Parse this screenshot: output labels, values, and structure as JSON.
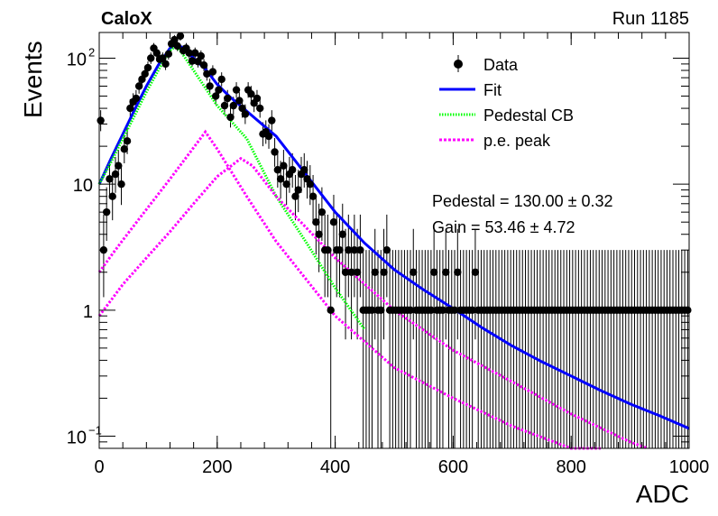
{
  "header": {
    "experiment": "CaloX",
    "run": "Run 1185"
  },
  "chart_data": {
    "type": "scatter",
    "xlabel": "ADC",
    "ylabel": "Events",
    "xlim": [
      0,
      1000
    ],
    "ylim": [
      0.08,
      160
    ],
    "yscale": "log",
    "x_ticks": [
      "0",
      "200",
      "400",
      "600",
      "800",
      "1000"
    ],
    "y_ticks": [
      {
        "value": 0.1,
        "base": "10",
        "exp": "−1"
      },
      {
        "value": 1,
        "base": "1",
        "exp": ""
      },
      {
        "value": 10,
        "base": "10",
        "exp": ""
      },
      {
        "value": 100,
        "base": "10",
        "exp": "2"
      }
    ],
    "legend": {
      "position": "top-right",
      "entries": [
        "Data",
        "Fit",
        "Pedestal CB",
        "p.e. peak"
      ]
    },
    "fit_results": {
      "pedestal": "Pedestal = 130.00 ± 0.32",
      "gain": "Gain = 53.46 ± 4.72"
    },
    "colors": {
      "data": "#000000",
      "fit": "#0000ff",
      "pedestal": "#00ff00",
      "pe": "#ff00ff"
    },
    "series": [
      {
        "name": "Data",
        "style": "points",
        "x": [
          0,
          5,
          10,
          15,
          20,
          25,
          30,
          35,
          40,
          45,
          50,
          55,
          60,
          65,
          70,
          75,
          80,
          85,
          90,
          95,
          100,
          105,
          110,
          115,
          120,
          125,
          130,
          135,
          140,
          145,
          150,
          155,
          160,
          165,
          170,
          175,
          180,
          185,
          190,
          195,
          200,
          205,
          210,
          215,
          220,
          225,
          230,
          235,
          240,
          245,
          250,
          255,
          260,
          265,
          270,
          275,
          280,
          285,
          290,
          295,
          300,
          305,
          310,
          315,
          320,
          325,
          330,
          335,
          340,
          345,
          350,
          355,
          360,
          365,
          370,
          375,
          380,
          385,
          390,
          395,
          400,
          405,
          410,
          415,
          420,
          425,
          430,
          435,
          440,
          445,
          450,
          455,
          460,
          465,
          470,
          475,
          480,
          485,
          490,
          495,
          500,
          505,
          510,
          515,
          520,
          525,
          530,
          535,
          540,
          545,
          550,
          555,
          560,
          565,
          570,
          575,
          580,
          585,
          590,
          595,
          600,
          605,
          610,
          615,
          620,
          625,
          630,
          635,
          640,
          645,
          650,
          655,
          660,
          665,
          670,
          675,
          680,
          685,
          690,
          695,
          700,
          705,
          710,
          715,
          720,
          725,
          730,
          735,
          740,
          745,
          750,
          755,
          760,
          765,
          770,
          775,
          780,
          785,
          790,
          795,
          800,
          805,
          810,
          815,
          820,
          825,
          830,
          835,
          840,
          845,
          850,
          855,
          860,
          865,
          870,
          875,
          880,
          885,
          890,
          895,
          900,
          905,
          910,
          915,
          920,
          925,
          930,
          935,
          940,
          945,
          950,
          955,
          960,
          965,
          970,
          975,
          980,
          985,
          990,
          995
        ],
        "y": [
          32,
          3,
          6,
          11,
          8,
          12,
          14,
          10,
          19,
          22,
          40,
          45,
          48,
          60,
          68,
          75,
          84,
          100,
          120,
          110,
          98,
          100,
          90,
          108,
          130,
          140,
          125,
          150,
          115,
          120,
          110,
          95,
          110,
          94,
          104,
          88,
          75,
          60,
          78,
          50,
          56,
          68,
          42,
          48,
          34,
          42,
          56,
          46,
          40,
          36,
          56,
          52,
          44,
          48,
          40,
          25,
          26,
          24,
          32,
          18,
          13,
          11,
          14,
          10,
          12,
          13,
          8,
          9,
          12,
          13,
          11,
          10,
          8,
          5,
          4,
          6,
          3,
          3,
          1,
          5,
          3,
          3,
          4,
          2,
          3,
          2,
          3,
          2,
          3,
          1,
          1,
          1,
          1,
          2,
          1,
          1,
          2,
          3,
          1,
          1,
          1,
          1,
          1,
          1,
          1,
          1,
          2,
          1,
          1,
          1,
          1,
          1,
          1,
          2,
          1,
          1,
          1,
          2,
          1,
          1,
          1,
          2,
          1,
          1,
          1,
          1,
          1,
          2,
          1,
          1,
          1,
          1,
          1,
          1,
          1,
          1,
          1,
          1,
          1,
          1,
          1,
          1,
          1,
          1,
          1,
          1,
          1,
          1,
          1,
          1,
          1,
          1,
          1,
          1,
          1,
          1,
          1,
          1,
          1,
          1,
          1,
          1,
          1,
          1,
          1,
          1,
          1,
          1,
          1,
          1,
          1,
          1,
          1,
          1,
          1,
          1,
          1,
          1,
          1,
          1,
          1,
          1,
          1,
          1,
          1,
          1,
          1,
          1,
          1,
          1,
          1,
          1,
          1,
          1,
          1,
          1,
          1,
          1,
          1,
          1
        ]
      },
      {
        "name": "Fit",
        "style": "line",
        "x": [
          0,
          20,
          40,
          60,
          80,
          100,
          120,
          130,
          140,
          160,
          180,
          200,
          220,
          250,
          300,
          350,
          400,
          450,
          500,
          550,
          600,
          650,
          700,
          750,
          800,
          850,
          900,
          950,
          1000
        ],
        "y": [
          10,
          16,
          25,
          39,
          60,
          88,
          120,
          130,
          122,
          100,
          82,
          62,
          50,
          38,
          24,
          12,
          6,
          3.4,
          2.1,
          1.45,
          1.03,
          0.72,
          0.52,
          0.39,
          0.3,
          0.23,
          0.18,
          0.145,
          0.115
        ]
      },
      {
        "name": "Pedestal CB",
        "style": "dotted",
        "x": [
          0,
          20,
          40,
          60,
          80,
          100,
          120,
          130,
          140,
          160,
          180,
          200,
          250,
          300,
          350,
          400,
          450
        ],
        "y": [
          10,
          15,
          23,
          35,
          54,
          80,
          115,
          125,
          110,
          80,
          58,
          42,
          23,
          8,
          3.5,
          1.5,
          0.7
        ]
      },
      {
        "name": "p.e. peak",
        "style": "dotted",
        "x": [
          0,
          20,
          40,
          80,
          120,
          160,
          180,
          200,
          250,
          300,
          400,
          500,
          600,
          700,
          800,
          850
        ],
        "y": [
          2,
          2.7,
          3.6,
          6.3,
          11,
          19.5,
          26,
          19,
          8,
          3.5,
          0.9,
          0.35,
          0.2,
          0.12,
          0.08,
          0.07
        ]
      },
      {
        "name": "p.e. peak",
        "style": "dotted",
        "x": [
          0,
          20,
          40,
          80,
          120,
          160,
          200,
          240,
          260,
          300,
          400,
          500,
          600,
          700,
          800,
          900,
          930
        ],
        "y": [
          0.9,
          1.2,
          1.6,
          2.6,
          4.2,
          7,
          11.5,
          16,
          14,
          8,
          2.6,
          1,
          0.48,
          0.27,
          0.15,
          0.09,
          0.08
        ]
      }
    ]
  }
}
